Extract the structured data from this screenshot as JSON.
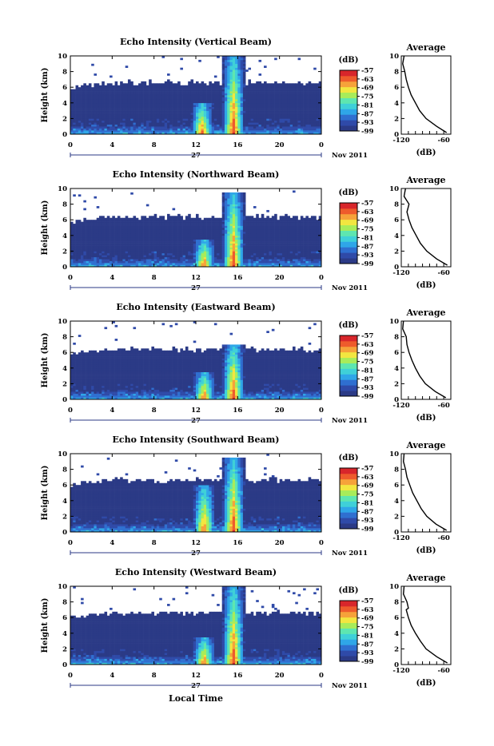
{
  "colors": {
    "background": "#2b3a86",
    "colormap": [
      "#2b3a86",
      "#2f4aa8",
      "#2f6fd0",
      "#2fa6e8",
      "#3fd0d8",
      "#5ee6b0",
      "#a8ec5a",
      "#f2e640",
      "#f6a23a",
      "#ee5b2c",
      "#d8262b"
    ]
  },
  "shared": {
    "ylabel": "Height (km)",
    "height_ticks": [
      "0",
      "2",
      "4",
      "6",
      "8",
      "10"
    ],
    "time_ticks": [
      "0",
      "4",
      "8",
      "12",
      "16",
      "20",
      "0"
    ],
    "date_day": "27",
    "date_month_year": "Nov 2011",
    "colorbar_unit": "(dB)",
    "colorbar_ticks": [
      "-57",
      "-63",
      "-69",
      "-75",
      "-81",
      "-87",
      "-93",
      "-99"
    ],
    "profile_title": "Average",
    "profile_xticks": [
      "-120",
      "-60"
    ],
    "profile_xlabel": "(dB)",
    "xlabel": "Local Time"
  },
  "chart_data": [
    {
      "type": "heatmap",
      "title": "Echo Intensity (Vertical Beam)",
      "x_range_hours": [
        0,
        24
      ],
      "y_range_km": [
        0,
        10
      ],
      "z_range_db": [
        -99,
        -57
      ],
      "cloud_top_km": 6.6,
      "features": [
        {
          "center_hour": 12.6,
          "top_km": 4.0,
          "peak_db": -60
        },
        {
          "center_hour": 15.6,
          "top_km": 10.0,
          "peak_db": -57
        }
      ],
      "profile": {
        "x_range_db": [
          -120,
          -50
        ],
        "points": [
          [
            -116,
            10
          ],
          [
            -118,
            9.0
          ],
          [
            -115,
            8.0
          ],
          [
            -113,
            7.0
          ],
          [
            -110,
            6.0
          ],
          [
            -106,
            5.0
          ],
          [
            -100,
            4.0
          ],
          [
            -94,
            3.0
          ],
          [
            -85,
            2.0
          ],
          [
            -70,
            1.0
          ],
          [
            -56,
            0.2
          ]
        ]
      }
    },
    {
      "type": "heatmap",
      "title": "Echo Intensity (Northward Beam)",
      "x_range_hours": [
        0,
        24
      ],
      "y_range_km": [
        0,
        10
      ],
      "z_range_db": [
        -99,
        -57
      ],
      "cloud_top_km": 6.4,
      "features": [
        {
          "center_hour": 12.8,
          "top_km": 3.5,
          "peak_db": -60
        },
        {
          "center_hour": 15.6,
          "top_km": 9.5,
          "peak_db": -57
        }
      ],
      "profile": {
        "x_range_db": [
          -120,
          -50
        ],
        "points": [
          [
            -114,
            10
          ],
          [
            -116,
            9.0
          ],
          [
            -109,
            8.0
          ],
          [
            -112,
            7.0
          ],
          [
            -109,
            6.0
          ],
          [
            -105,
            5.0
          ],
          [
            -99,
            4.0
          ],
          [
            -93,
            3.0
          ],
          [
            -84,
            2.0
          ],
          [
            -70,
            1.0
          ],
          [
            -55,
            0.2
          ]
        ]
      }
    },
    {
      "type": "heatmap",
      "title": "Echo Intensity (Eastward Beam)",
      "x_range_hours": [
        0,
        24
      ],
      "y_range_km": [
        0,
        10
      ],
      "z_range_db": [
        -99,
        -57
      ],
      "cloud_top_km": 6.4,
      "features": [
        {
          "center_hour": 12.8,
          "top_km": 3.5,
          "peak_db": -60
        },
        {
          "center_hour": 15.6,
          "top_km": 7.0,
          "peak_db": -57
        }
      ],
      "profile": {
        "x_range_db": [
          -120,
          -50
        ],
        "points": [
          [
            -117,
            10
          ],
          [
            -118,
            9.0
          ],
          [
            -113,
            8.0
          ],
          [
            -112,
            7.0
          ],
          [
            -109,
            6.0
          ],
          [
            -105,
            5.0
          ],
          [
            -100,
            4.0
          ],
          [
            -94,
            3.0
          ],
          [
            -86,
            2.0
          ],
          [
            -72,
            1.0
          ],
          [
            -57,
            0.2
          ]
        ]
      }
    },
    {
      "type": "heatmap",
      "title": "Echo Intensity (Southward Beam)",
      "x_range_hours": [
        0,
        24
      ],
      "y_range_km": [
        0,
        10
      ],
      "z_range_db": [
        -99,
        -57
      ],
      "cloud_top_km": 6.6,
      "features": [
        {
          "center_hour": 12.8,
          "top_km": 6.0,
          "peak_db": -60
        },
        {
          "center_hour": 15.6,
          "top_km": 9.5,
          "peak_db": -57
        }
      ],
      "profile": {
        "x_range_db": [
          -120,
          -50
        ],
        "points": [
          [
            -116,
            10
          ],
          [
            -117,
            9.0
          ],
          [
            -114,
            8.0
          ],
          [
            -112,
            7.0
          ],
          [
            -108,
            6.0
          ],
          [
            -104,
            5.0
          ],
          [
            -98,
            4.0
          ],
          [
            -92,
            3.0
          ],
          [
            -84,
            2.0
          ],
          [
            -71,
            1.0
          ],
          [
            -56,
            0.2
          ]
        ]
      }
    },
    {
      "type": "heatmap",
      "title": "Echo Intensity (Westward Beam)",
      "x_range_hours": [
        0,
        24
      ],
      "y_range_km": [
        0,
        10
      ],
      "z_range_db": [
        -99,
        -57
      ],
      "cloud_top_km": 6.6,
      "features": [
        {
          "center_hour": 12.8,
          "top_km": 3.5,
          "peak_db": -60
        },
        {
          "center_hour": 15.6,
          "top_km": 10.0,
          "peak_db": -57
        }
      ],
      "profile": {
        "x_range_db": [
          -120,
          -50
        ],
        "points": [
          [
            -116,
            10
          ],
          [
            -117,
            9.0
          ],
          [
            -112,
            8.0
          ],
          [
            -110,
            7.2
          ],
          [
            -113,
            7.0
          ],
          [
            -110,
            6.0
          ],
          [
            -106,
            5.0
          ],
          [
            -100,
            4.0
          ],
          [
            -93,
            3.0
          ],
          [
            -85,
            2.0
          ],
          [
            -70,
            1.0
          ],
          [
            -55,
            0.2
          ]
        ]
      }
    }
  ]
}
